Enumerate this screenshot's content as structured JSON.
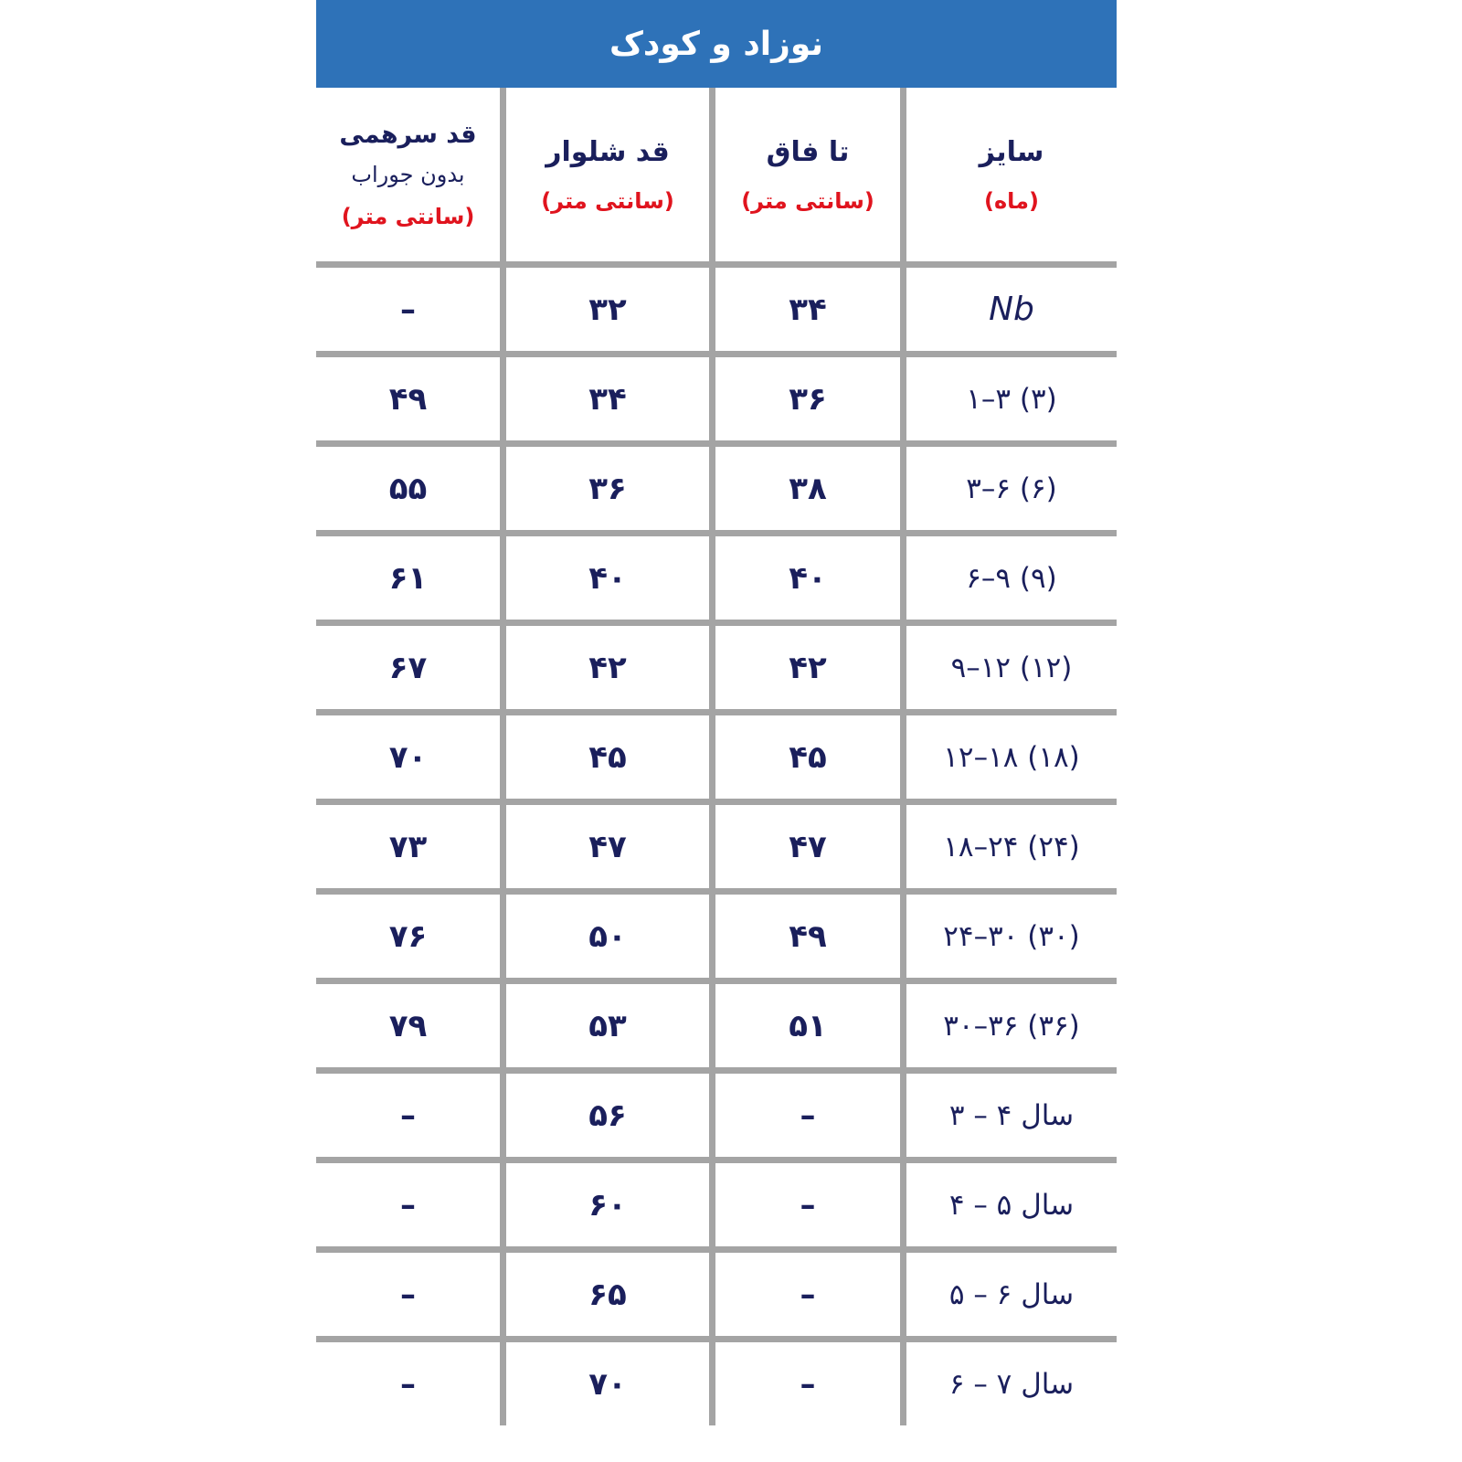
{
  "title": "نوزاد و کودک",
  "colors": {
    "header_bg": "#2e72b8",
    "text": "#1a1f5c",
    "unit": "#e0141e",
    "grid": "#a4a4a4"
  },
  "headers": [
    {
      "label": "سایز",
      "unit": "(ماه)"
    },
    {
      "label": "تا فاق",
      "unit": "(سانتی متر)"
    },
    {
      "label": "قد شلوار",
      "unit": "(سانتی متر)"
    },
    {
      "label": "قد سرهمی",
      "sublabel": "بدون جوراب",
      "unit": "(سانتی متر)"
    }
  ],
  "rows": [
    {
      "size": "Nb",
      "crotch": "۳۴",
      "pants": "۳۲",
      "footed": "–"
    },
    {
      "size": "۱–۳ (۳)",
      "crotch": "۳۶",
      "pants": "۳۴",
      "footed": "۴۹"
    },
    {
      "size": "۳–۶ (۶)",
      "crotch": "۳۸",
      "pants": "۳۶",
      "footed": "۵۵"
    },
    {
      "size": "۶–۹ (۹)",
      "crotch": "۴۰",
      "pants": "۴۰",
      "footed": "۶۱"
    },
    {
      "size": "۹–۱۲ (۱۲)",
      "crotch": "۴۲",
      "pants": "۴۲",
      "footed": "۶۷"
    },
    {
      "size": "۱۲–۱۸ (۱۸)",
      "crotch": "۴۵",
      "pants": "۴۵",
      "footed": "۷۰"
    },
    {
      "size": "۱۸–۲۴ (۲۴)",
      "crotch": "۴۷",
      "pants": "۴۷",
      "footed": "۷۳"
    },
    {
      "size": "۲۴–۳۰ (۳۰)",
      "crotch": "۴۹",
      "pants": "۵۰",
      "footed": "۷۶"
    },
    {
      "size": "۳۰–۳۶ (۳۶)",
      "crotch": "۵۱",
      "pants": "۵۳",
      "footed": "۷۹"
    },
    {
      "size": "۳ – ۴    سال",
      "crotch": "–",
      "pants": "۵۶",
      "footed": "–"
    },
    {
      "size": "۴ – ۵    سال",
      "crotch": "–",
      "pants": "۶۰",
      "footed": "–"
    },
    {
      "size": "۵ – ۶    سال",
      "crotch": "–",
      "pants": "۶۵",
      "footed": "–"
    },
    {
      "size": "۶ – ۷    سال",
      "crotch": "–",
      "pants": "۷۰",
      "footed": "–"
    }
  ]
}
